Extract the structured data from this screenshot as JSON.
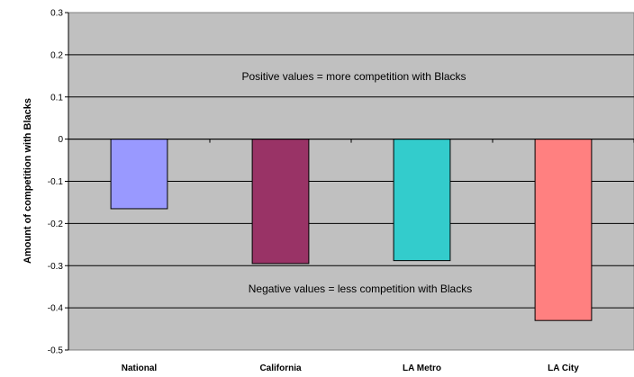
{
  "chart_data": {
    "type": "bar",
    "title": "",
    "xlabel": "",
    "ylabel": "Amount of competition with Blacks",
    "categories": [
      "National",
      "California",
      "LA Metro",
      "LA City"
    ],
    "values": [
      -0.165,
      -0.295,
      -0.288,
      -0.43
    ],
    "colors": [
      "#9999ff",
      "#993366",
      "#33cccc",
      "#ff8080"
    ],
    "ylim": [
      -0.5,
      0.3
    ],
    "yticks": [
      0.3,
      0.2,
      0.1,
      0,
      -0.1,
      -0.2,
      -0.3,
      -0.4,
      -0.5
    ],
    "ytick_labels": [
      "0.3",
      "0.2",
      "0.1",
      "0",
      "-0.1",
      "-0.2",
      "-0.3",
      "-0.4",
      "-0.5"
    ],
    "grid": true,
    "plot_background": "#c0c0c0",
    "annotations": {
      "positive": "Positive values = more competition with Blacks",
      "negative": "Negative values = less competition with Blacks"
    }
  }
}
